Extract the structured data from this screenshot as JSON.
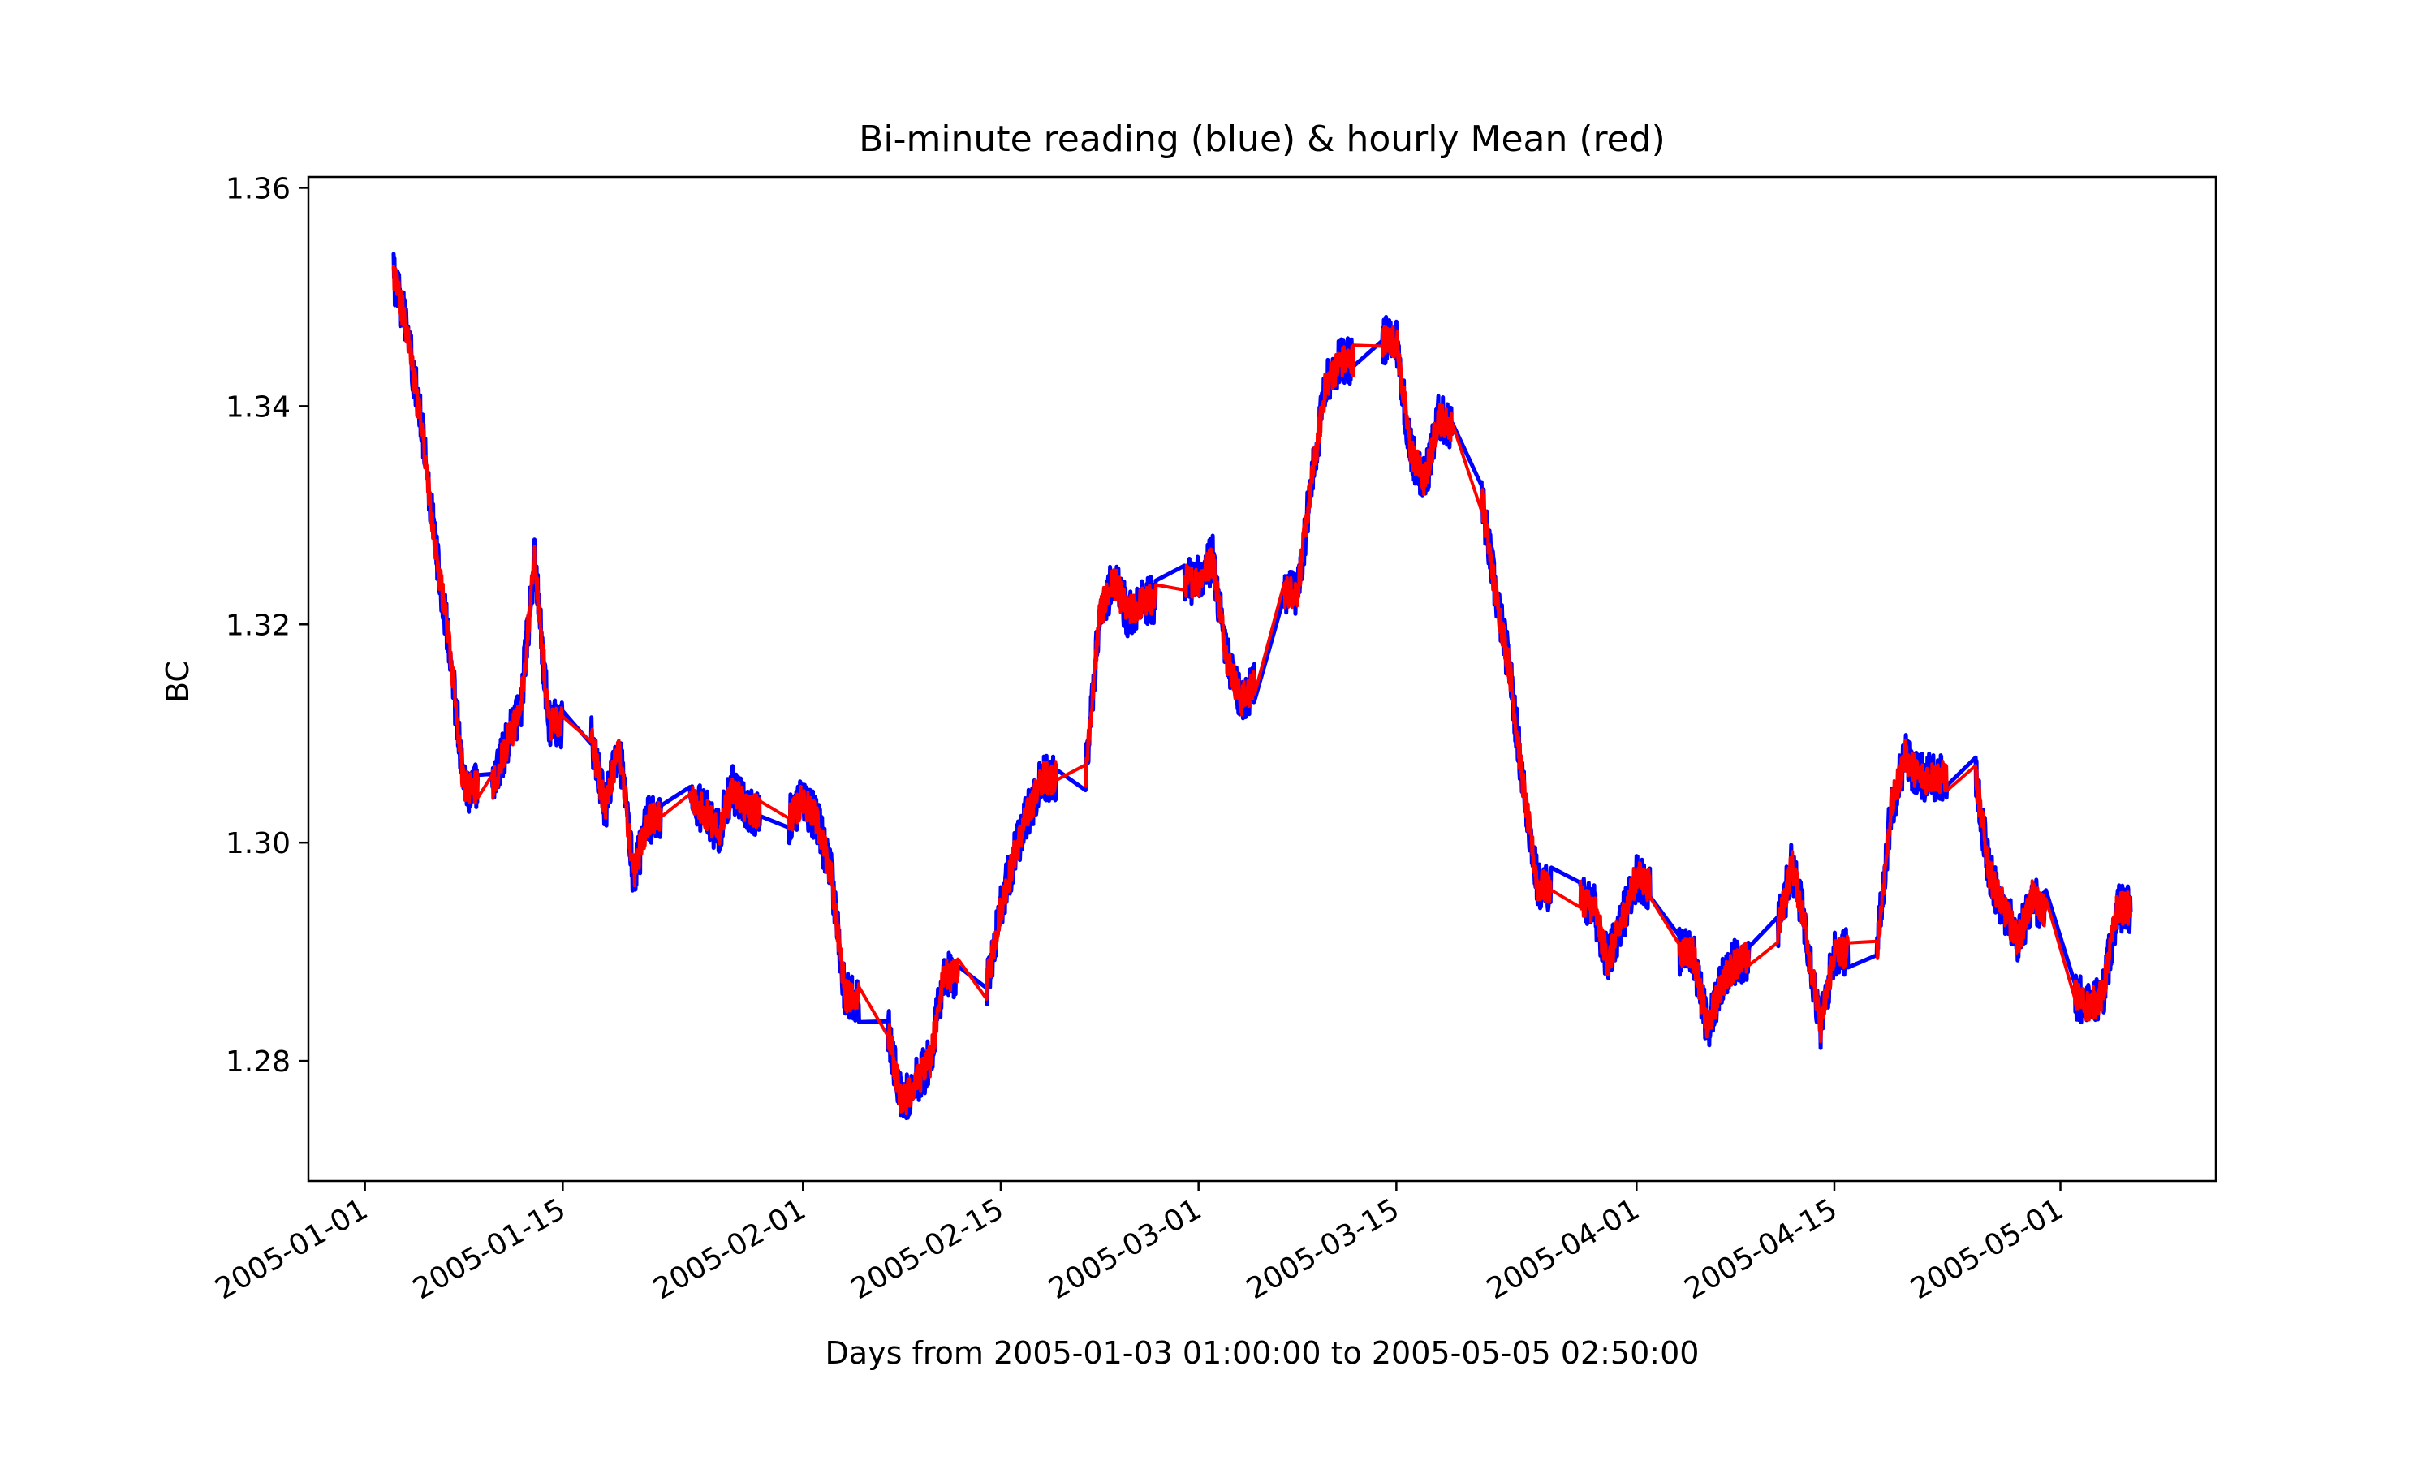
{
  "chart_data": {
    "type": "line",
    "title": "Bi-minute reading (blue) & hourly Mean (red)",
    "xlabel": "Days from 2005-01-03 01:00:00 to 2005-05-05 02:50:00",
    "ylabel": "BC",
    "x_type": "date",
    "xlim": [
      "2004-12-28",
      "2005-05-12"
    ],
    "ylim": [
      1.269,
      1.361
    ],
    "x_ticks": [
      "2005-01-01",
      "2005-01-15",
      "2005-02-01",
      "2005-02-15",
      "2005-03-01",
      "2005-03-15",
      "2005-04-01",
      "2005-04-15",
      "2005-05-01"
    ],
    "y_ticks": [
      "1.28",
      "1.30",
      "1.32",
      "1.34",
      "1.36"
    ],
    "grid": false,
    "legend": "none",
    "series": [
      {
        "color": "#0000ff",
        "noise": 0.0022,
        "x": [
          "2005-01-03",
          "2005-01-04",
          "2005-01-05",
          "2005-01-06",
          "2005-01-07",
          "2005-01-08",
          "2005-01-10",
          "2005-01-11",
          "2005-01-12",
          "2005-01-13",
          "2005-01-14",
          "2005-01-17",
          "2005-01-18",
          "2005-01-19",
          "2005-01-20",
          "2005-01-21",
          "2005-01-24",
          "2005-01-25",
          "2005-01-26",
          "2005-01-27",
          "2005-01-28",
          "2005-01-31",
          "2005-02-01",
          "2005-02-02",
          "2005-02-03",
          "2005-02-04",
          "2005-02-07",
          "2005-02-08",
          "2005-02-09",
          "2005-02-10",
          "2005-02-11",
          "2005-02-14",
          "2005-02-15",
          "2005-02-16",
          "2005-02-17",
          "2005-02-18",
          "2005-02-21",
          "2005-02-22",
          "2005-02-23",
          "2005-02-24",
          "2005-02-25",
          "2005-02-28",
          "2005-03-01",
          "2005-03-02",
          "2005-03-03",
          "2005-03-04",
          "2005-03-07",
          "2005-03-08",
          "2005-03-09",
          "2005-03-10",
          "2005-03-11",
          "2005-03-14",
          "2005-03-15",
          "2005-03-16",
          "2005-03-17",
          "2005-03-18",
          "2005-03-21",
          "2005-03-22",
          "2005-03-23",
          "2005-03-24",
          "2005-03-25",
          "2005-03-28",
          "2005-03-29",
          "2005-03-30",
          "2005-03-31",
          "2005-04-01",
          "2005-04-04",
          "2005-04-05",
          "2005-04-06",
          "2005-04-07",
          "2005-04-08",
          "2005-04-11",
          "2005-04-12",
          "2005-04-13",
          "2005-04-14",
          "2005-04-15",
          "2005-04-18",
          "2005-04-19",
          "2005-04-20",
          "2005-04-21",
          "2005-04-22",
          "2005-04-25",
          "2005-04-26",
          "2005-04-27",
          "2005-04-28",
          "2005-04-29",
          "2005-05-02",
          "2005-05-03",
          "2005-05-04",
          "2005-05-05"
        ],
        "y": [
          1.352,
          1.347,
          1.338,
          1.327,
          1.318,
          1.305,
          1.305,
          1.309,
          1.312,
          1.326,
          1.311,
          1.31,
          1.303,
          1.309,
          1.297,
          1.302,
          1.304,
          1.303,
          1.301,
          1.305,
          1.303,
          1.302,
          1.304,
          1.302,
          1.297,
          1.286,
          1.283,
          1.276,
          1.278,
          1.28,
          1.288,
          1.287,
          1.294,
          1.299,
          1.303,
          1.306,
          1.306,
          1.321,
          1.324,
          1.321,
          1.322,
          1.324,
          1.324,
          1.326,
          1.317,
          1.313,
          1.323,
          1.323,
          1.333,
          1.342,
          1.344,
          1.346,
          1.346,
          1.336,
          1.333,
          1.339,
          1.332,
          1.323,
          1.316,
          1.305,
          1.296,
          1.295,
          1.294,
          1.289,
          1.293,
          1.297,
          1.29,
          1.29,
          1.283,
          1.287,
          1.289,
          1.292,
          1.298,
          1.292,
          1.283,
          1.29,
          1.29,
          1.303,
          1.308,
          1.306,
          1.306,
          1.306,
          1.297,
          1.294,
          1.291,
          1.295,
          1.286,
          1.285,
          1.286,
          1.294
        ]
      },
      {
        "color": "#ff0000",
        "noise": 0.0015,
        "x": [
          "2005-01-03",
          "2005-01-04",
          "2005-01-05",
          "2005-01-06",
          "2005-01-07",
          "2005-01-08",
          "2005-01-10",
          "2005-01-11",
          "2005-01-12",
          "2005-01-13",
          "2005-01-14",
          "2005-01-17",
          "2005-01-18",
          "2005-01-19",
          "2005-01-20",
          "2005-01-21",
          "2005-01-24",
          "2005-01-25",
          "2005-01-26",
          "2005-01-27",
          "2005-01-28",
          "2005-01-31",
          "2005-02-01",
          "2005-02-02",
          "2005-02-03",
          "2005-02-04",
          "2005-02-07",
          "2005-02-08",
          "2005-02-09",
          "2005-02-10",
          "2005-02-11",
          "2005-02-14",
          "2005-02-15",
          "2005-02-16",
          "2005-02-17",
          "2005-02-18",
          "2005-02-21",
          "2005-02-22",
          "2005-02-23",
          "2005-02-24",
          "2005-02-25",
          "2005-02-28",
          "2005-03-01",
          "2005-03-02",
          "2005-03-03",
          "2005-03-04",
          "2005-03-07",
          "2005-03-08",
          "2005-03-09",
          "2005-03-10",
          "2005-03-11",
          "2005-03-14",
          "2005-03-15",
          "2005-03-16",
          "2005-03-17",
          "2005-03-18",
          "2005-03-21",
          "2005-03-22",
          "2005-03-23",
          "2005-03-24",
          "2005-03-25",
          "2005-03-28",
          "2005-03-29",
          "2005-03-30",
          "2005-03-31",
          "2005-04-01",
          "2005-04-04",
          "2005-04-05",
          "2005-04-06",
          "2005-04-07",
          "2005-04-08",
          "2005-04-11",
          "2005-04-12",
          "2005-04-13",
          "2005-04-14",
          "2005-04-15",
          "2005-04-18",
          "2005-04-19",
          "2005-04-20",
          "2005-04-21",
          "2005-04-22",
          "2005-04-25",
          "2005-04-26",
          "2005-04-27",
          "2005-04-28",
          "2005-04-29",
          "2005-05-02",
          "2005-05-03",
          "2005-05-04",
          "2005-05-05"
        ],
        "y": [
          1.352,
          1.347,
          1.338,
          1.327,
          1.318,
          1.305,
          1.305,
          1.309,
          1.312,
          1.326,
          1.311,
          1.31,
          1.303,
          1.309,
          1.297,
          1.302,
          1.304,
          1.303,
          1.301,
          1.305,
          1.303,
          1.302,
          1.304,
          1.302,
          1.297,
          1.286,
          1.283,
          1.276,
          1.278,
          1.28,
          1.288,
          1.287,
          1.294,
          1.299,
          1.303,
          1.306,
          1.306,
          1.321,
          1.324,
          1.321,
          1.322,
          1.324,
          1.324,
          1.326,
          1.317,
          1.313,
          1.323,
          1.323,
          1.333,
          1.342,
          1.344,
          1.346,
          1.346,
          1.336,
          1.333,
          1.339,
          1.332,
          1.323,
          1.316,
          1.305,
          1.296,
          1.295,
          1.294,
          1.289,
          1.293,
          1.297,
          1.29,
          1.29,
          1.283,
          1.287,
          1.289,
          1.292,
          1.298,
          1.292,
          1.283,
          1.29,
          1.29,
          1.303,
          1.308,
          1.306,
          1.306,
          1.306,
          1.297,
          1.294,
          1.291,
          1.295,
          1.286,
          1.285,
          1.286,
          1.294
        ]
      }
    ]
  }
}
